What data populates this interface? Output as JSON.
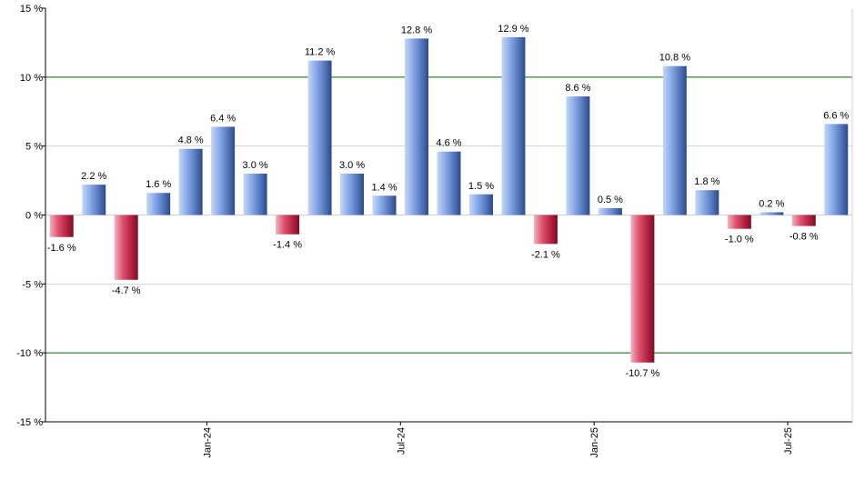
{
  "chart_data": {
    "type": "bar",
    "title": "",
    "xlabel": "",
    "ylabel": "",
    "ylim": [
      -15,
      15
    ],
    "y_ticks": [
      15,
      10,
      5,
      0,
      -5,
      -10,
      -15
    ],
    "y_tick_labels": [
      "15 %",
      "10 %",
      "5 %",
      "0 %",
      "-5 %",
      "-10 %",
      "-15 %"
    ],
    "values": [
      -1.6,
      2.2,
      -4.7,
      1.6,
      4.8,
      6.4,
      3.0,
      -1.4,
      11.2,
      3.0,
      1.4,
      12.8,
      4.6,
      1.5,
      12.9,
      -2.1,
      8.6,
      0.5,
      -10.7,
      10.8,
      1.8,
      -1.0,
      0.2,
      -0.8,
      6.6
    ],
    "value_labels": [
      "-1.6 %",
      "2.2 %",
      "-4.7 %",
      "1.6 %",
      "4.8 %",
      "6.4 %",
      "3.0 %",
      "-1.4 %",
      "11.2 %",
      "3.0 %",
      "1.4 %",
      "12.8 %",
      "4.6 %",
      "1.5 %",
      "12.9 %",
      "-2.1 %",
      "8.6 %",
      "0.5 %",
      "-10.7 %",
      "10.8 %",
      "1.8 %",
      "-1.0 %",
      "0.2 %",
      "-0.8 %",
      "6.6 %"
    ],
    "x_tick_labels": [
      {
        "index": 4.5,
        "label": "Jan-24"
      },
      {
        "index": 10.5,
        "label": "Jul-24"
      },
      {
        "index": 16.5,
        "label": "Jan-25"
      },
      {
        "index": 22.5,
        "label": "Jul-25"
      }
    ],
    "highlight_gridlines": [
      10,
      -10
    ],
    "colors": {
      "positive": "#6f96dd",
      "negative": "#c8314d",
      "highlight_grid": "#006400",
      "grid": "#d3d3d3",
      "axis": "#000000"
    }
  }
}
